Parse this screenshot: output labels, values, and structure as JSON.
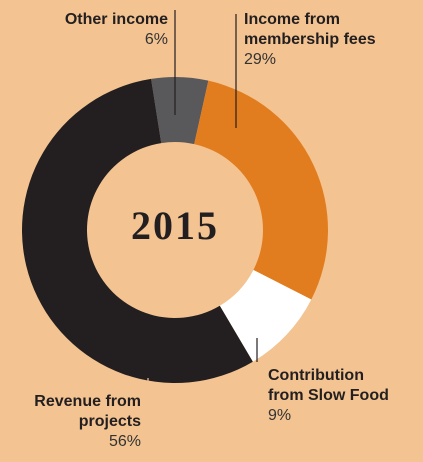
{
  "chart_data": {
    "type": "donut",
    "center_label": "2015",
    "categories": [
      "Other income",
      "Income from membership fees",
      "Contribution from Slow Food",
      "Revenue from projects"
    ],
    "values": [
      6,
      29,
      9,
      56
    ],
    "value_labels": [
      "6%",
      "29%",
      "9%",
      "56%"
    ],
    "colors": [
      "#59595b",
      "#e17d1f",
      "#ffffff",
      "#231f20"
    ]
  }
}
